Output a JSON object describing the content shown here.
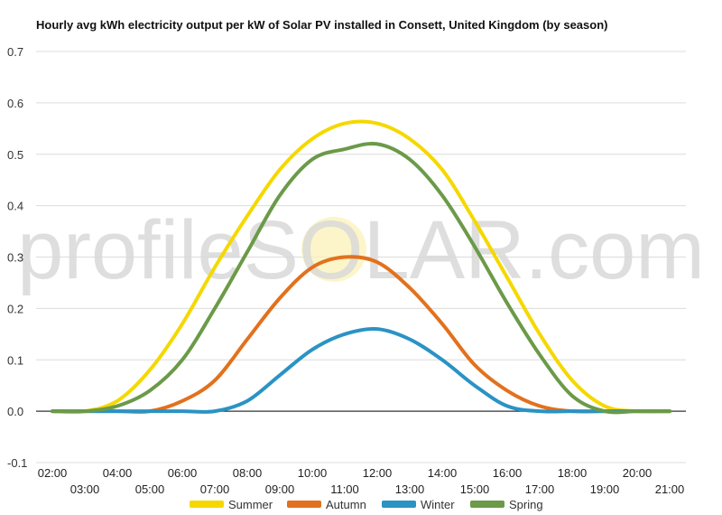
{
  "chart_data": {
    "type": "line",
    "title": "Hourly avg kWh electricity output per kW of Solar PV installed in Consett, United Kingdom (by season)",
    "watermark": "profileSOLAR.com",
    "xlabel": "",
    "ylabel": "",
    "ylim": [
      -0.1,
      0.7
    ],
    "yticks": [
      "0.7",
      "0.6",
      "0.5",
      "0.4",
      "0.3",
      "0.2",
      "0.1",
      "0.0",
      "-0.1"
    ],
    "xticks_upper": [
      "02:00",
      "04:00",
      "06:00",
      "08:00",
      "10:00",
      "12:00",
      "14:00",
      "16:00",
      "18:00",
      "20:00"
    ],
    "xticks_lower": [
      "03:00",
      "05:00",
      "07:00",
      "09:00",
      "11:00",
      "13:00",
      "15:00",
      "17:00",
      "19:00",
      "21:00"
    ],
    "x": [
      2,
      3,
      4,
      5,
      6,
      7,
      8,
      9,
      10,
      11,
      12,
      13,
      14,
      15,
      16,
      17,
      18,
      19,
      20,
      21
    ],
    "grid": true,
    "legend_position": "bottom",
    "series": [
      {
        "name": "Summer",
        "color": "#f5d800",
        "values": [
          0,
          0,
          0.02,
          0.08,
          0.17,
          0.28,
          0.38,
          0.47,
          0.53,
          0.56,
          0.56,
          0.53,
          0.47,
          0.37,
          0.26,
          0.15,
          0.06,
          0.01,
          0,
          0
        ]
      },
      {
        "name": "Autumn",
        "color": "#e2711d",
        "values": [
          0,
          0,
          0,
          0,
          0.02,
          0.06,
          0.14,
          0.22,
          0.28,
          0.3,
          0.29,
          0.24,
          0.17,
          0.09,
          0.04,
          0.01,
          0,
          0,
          0,
          0
        ]
      },
      {
        "name": "Winter",
        "color": "#2a93c4",
        "values": [
          0,
          0,
          0,
          0,
          0,
          0,
          0.02,
          0.07,
          0.12,
          0.15,
          0.16,
          0.14,
          0.1,
          0.05,
          0.01,
          0,
          0,
          0,
          0,
          0
        ]
      },
      {
        "name": "Spring",
        "color": "#6b9a48",
        "values": [
          0,
          0,
          0.01,
          0.04,
          0.1,
          0.2,
          0.31,
          0.42,
          0.49,
          0.51,
          0.52,
          0.49,
          0.42,
          0.32,
          0.21,
          0.11,
          0.03,
          0,
          0,
          0
        ]
      }
    ]
  }
}
